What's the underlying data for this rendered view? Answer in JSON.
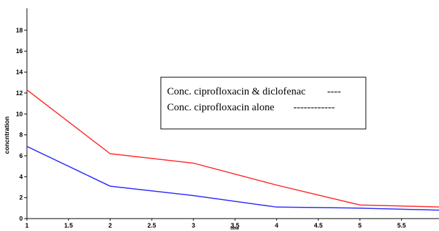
{
  "chart_data": {
    "type": "line",
    "title": "",
    "xlabel": "time",
    "ylabel": "concntration",
    "x": [
      1,
      2,
      3,
      4,
      5,
      6
    ],
    "xlim": [
      1,
      6
    ],
    "ylim": [
      0,
      20
    ],
    "x_ticks": [
      1,
      1.5,
      2,
      2.5,
      3,
      3.5,
      4,
      4.5,
      5,
      5.5
    ],
    "y_ticks": [
      0,
      2,
      4,
      6,
      8,
      10,
      12,
      14,
      16,
      18
    ],
    "grid": false,
    "legend_position": "center-right",
    "series": [
      {
        "name": "Conc. ciprofloxacin & diclofenac",
        "color": "#ff2a2a",
        "dash_color": "#ff0000",
        "legend_marker": "----",
        "values": [
          12.3,
          6.2,
          5.3,
          3.2,
          1.3,
          1.1
        ]
      },
      {
        "name": "Conc. ciprofloxacin alone",
        "color": "#2a2aff",
        "dash_color": "#0070c0",
        "legend_marker": "------------",
        "values": [
          6.9,
          3.1,
          2.2,
          1.1,
          1.0,
          0.8
        ]
      }
    ]
  }
}
